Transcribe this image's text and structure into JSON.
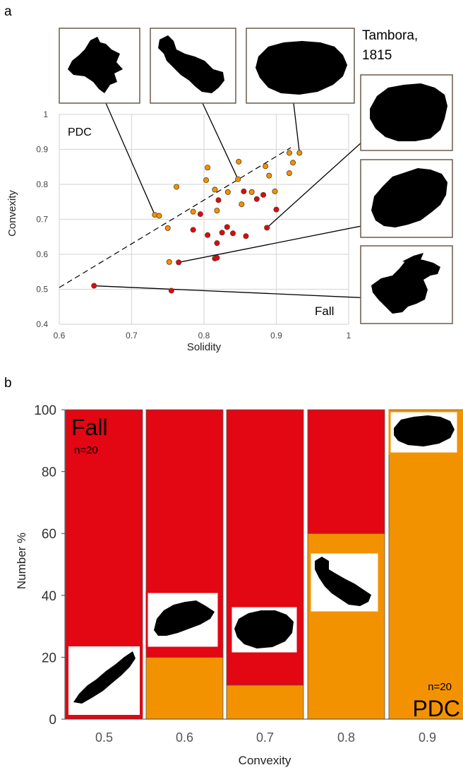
{
  "panel_a": {
    "label": "a",
    "tambora_label": "Tambora,\n1815",
    "pdc_label": "PDC",
    "fall_label": "Fall"
  },
  "panel_b": {
    "label": "b",
    "fall_label": "Fall",
    "fall_n": "n=20",
    "pdc_label": "PDC",
    "pdc_n": "n=20"
  },
  "colors": {
    "fall": "#e30613",
    "pdc": "#f39200",
    "grid": "#d9d9d9",
    "frame": "#6b5a4a"
  },
  "chart_data": [
    {
      "type": "scatter",
      "title": "",
      "xlabel": "Solidity",
      "ylabel": "Convexity",
      "xlim": [
        0.6,
        1
      ],
      "ylim": [
        0.4,
        1
      ],
      "xticks": [
        "0.6",
        "0.7",
        "0.8",
        "0.9",
        "1"
      ],
      "yticks": [
        "0.4",
        "0.5",
        "0.6",
        "0.7",
        "0.8",
        "0.9",
        "1"
      ],
      "grid": true,
      "dashed_divider": {
        "from": [
          0.6,
          0.505
        ],
        "to": [
          0.92,
          0.905
        ]
      },
      "series": [
        {
          "name": "PDC",
          "color": "#f39200",
          "points": [
            [
              0.732,
              0.713
            ],
            [
              0.738,
              0.71
            ],
            [
              0.75,
              0.675
            ],
            [
              0.762,
              0.793
            ],
            [
              0.752,
              0.578
            ],
            [
              0.785,
              0.722
            ],
            [
              0.805,
              0.848
            ],
            [
              0.803,
              0.812
            ],
            [
              0.815,
              0.785
            ],
            [
              0.833,
              0.778
            ],
            [
              0.818,
              0.725
            ],
            [
              0.848,
              0.865
            ],
            [
              0.847,
              0.815
            ],
            [
              0.852,
              0.743
            ],
            [
              0.866,
              0.778
            ],
            [
              0.885,
              0.852
            ],
            [
              0.89,
              0.825
            ],
            [
              0.898,
              0.78
            ],
            [
              0.918,
              0.89
            ],
            [
              0.932,
              0.89
            ],
            [
              0.923,
              0.862
            ],
            [
              0.918,
              0.832
            ]
          ]
        },
        {
          "name": "Fall",
          "color": "#e30613",
          "points": [
            [
              0.648,
              0.51
            ],
            [
              0.755,
              0.496
            ],
            [
              0.765,
              0.577
            ],
            [
              0.815,
              0.588
            ],
            [
              0.818,
              0.59
            ],
            [
              0.785,
              0.67
            ],
            [
              0.795,
              0.715
            ],
            [
              0.805,
              0.655
            ],
            [
              0.818,
              0.632
            ],
            [
              0.82,
              0.755
            ],
            [
              0.825,
              0.662
            ],
            [
              0.832,
              0.678
            ],
            [
              0.84,
              0.66
            ],
            [
              0.855,
              0.78
            ],
            [
              0.858,
              0.652
            ],
            [
              0.873,
              0.758
            ],
            [
              0.882,
              0.77
            ],
            [
              0.887,
              0.676
            ],
            [
              0.9,
              0.728
            ]
          ]
        }
      ]
    },
    {
      "type": "bar",
      "stacked": true,
      "xlabel": "Convexity",
      "ylabel": "Number %",
      "ylim": [
        0,
        100
      ],
      "yticks": [
        "0",
        "20",
        "40",
        "60",
        "80",
        "100"
      ],
      "categories": [
        "0.5",
        "0.6",
        "0.7",
        "0.8",
        "0.9"
      ],
      "series": [
        {
          "name": "PDC",
          "color": "#f39200",
          "values": [
            0,
            20,
            11,
            60,
            100
          ]
        },
        {
          "name": "Fall",
          "color": "#e30613",
          "values": [
            100,
            80,
            89,
            40,
            0
          ]
        }
      ]
    }
  ]
}
